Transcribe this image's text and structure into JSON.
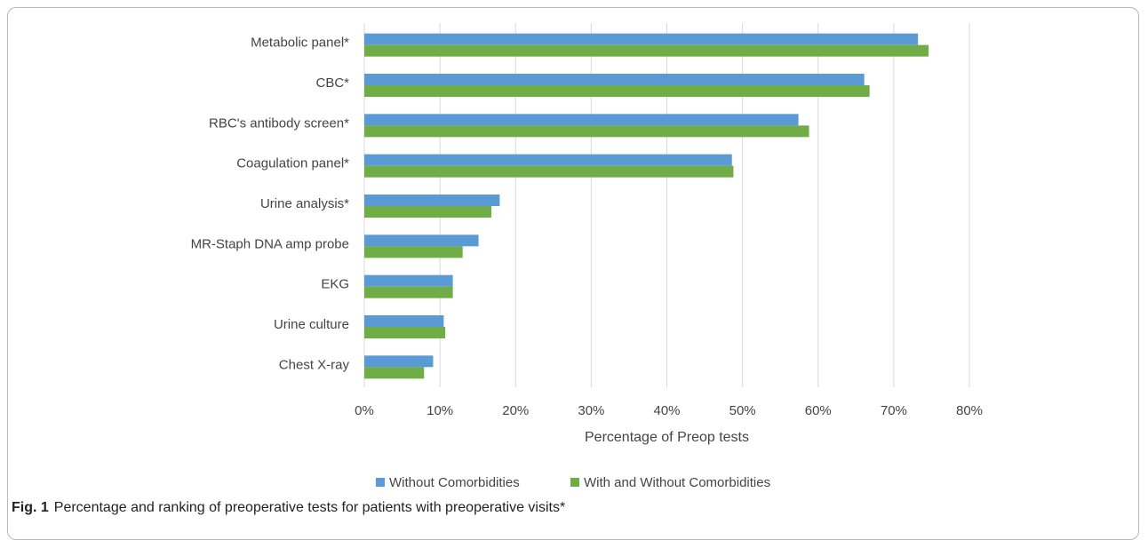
{
  "caption": {
    "label": "Fig. 1",
    "text": "Percentage and ranking of preoperative tests for patients with preoperative visits*"
  },
  "chart_data": {
    "type": "bar",
    "orientation": "horizontal",
    "categories": [
      "Metabolic panel*",
      "CBC*",
      "RBC's antibody screen*",
      "Coagulation panel*",
      "Urine analysis*",
      "MR-Staph DNA amp probe",
      "EKG",
      "Urine culture",
      "Chest X-ray"
    ],
    "series": [
      {
        "name": "Without Comorbidities",
        "color": "#5b9bd5",
        "values": [
          73.2,
          66.1,
          57.4,
          48.6,
          17.9,
          15.1,
          11.7,
          10.5,
          9.1
        ]
      },
      {
        "name": "With and Without Comorbidities",
        "color": "#70ad47",
        "values": [
          74.6,
          66.8,
          58.8,
          48.8,
          16.8,
          13.0,
          11.7,
          10.7,
          7.9
        ]
      }
    ],
    "xlabel": "Percentage of Preop tests",
    "xlim": [
      0,
      80
    ],
    "xticks": [
      "0%",
      "10%",
      "20%",
      "30%",
      "40%",
      "50%",
      "60%",
      "70%",
      "80%"
    ],
    "grid": true,
    "legend_position": "bottom"
  }
}
